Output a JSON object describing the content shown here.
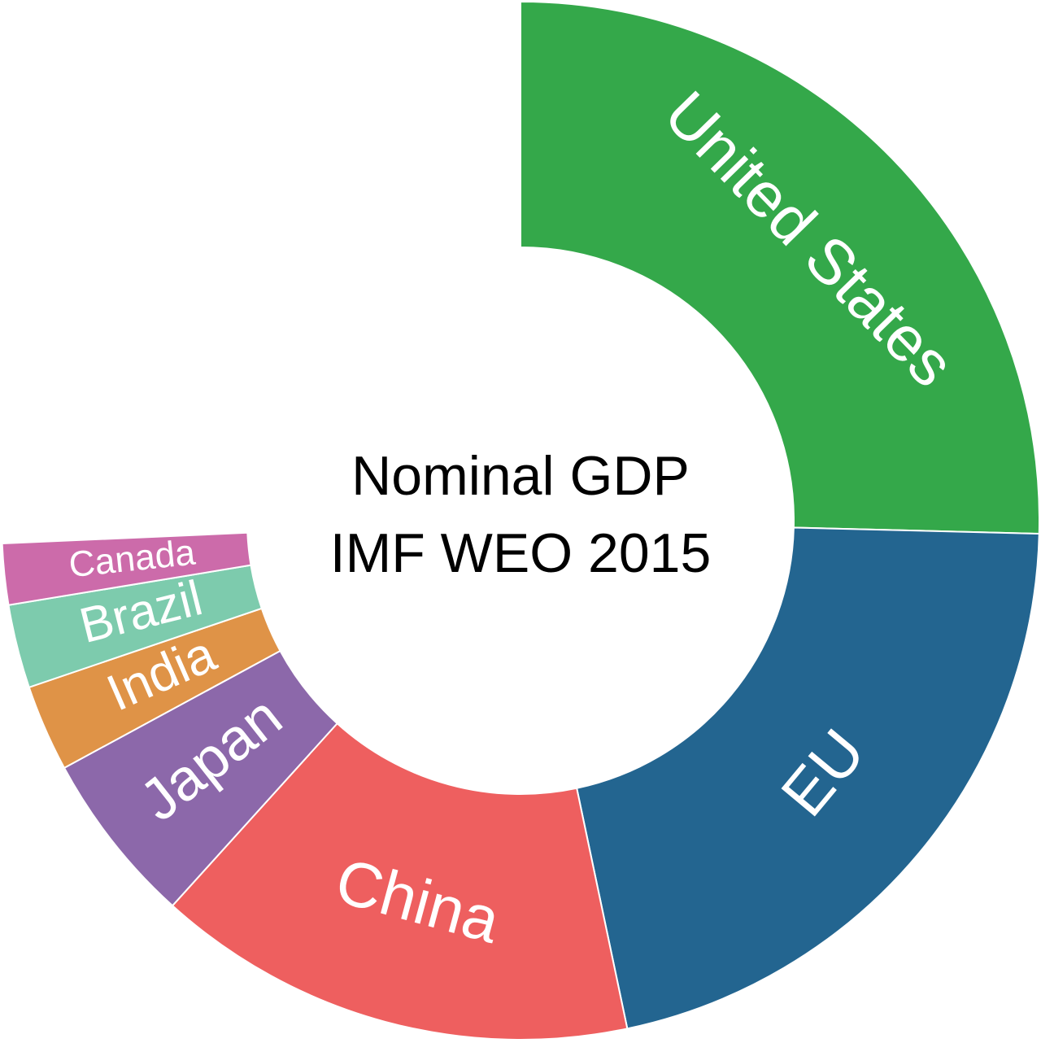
{
  "chart_data": {
    "type": "donut",
    "title": "Nominal GDP",
    "subtitle": "IMF WEO 2015",
    "categories": [
      "United States",
      "EU",
      "China",
      "Japan",
      "India",
      "Brazil",
      "Canada"
    ],
    "values": [
      25.4,
      21.3,
      15.0,
      5.4,
      2.7,
      2.6,
      1.9
    ],
    "colors": [
      "#34a84a",
      "#236590",
      "#ee5f5f",
      "#8c68aa",
      "#df9347",
      "#7dcbad",
      "#cc6baa"
    ]
  }
}
